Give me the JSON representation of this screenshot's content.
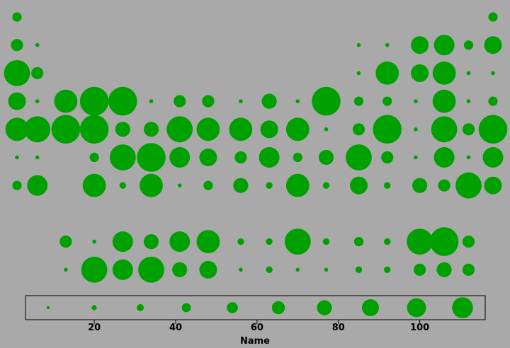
{
  "chart_data": {
    "type": "scatter",
    "encoding": "bubble-size",
    "xlabel": "Name",
    "xlim": [
      0,
      118
    ],
    "xticks": [
      20,
      40,
      60,
      80,
      100
    ],
    "ylabel": "",
    "grid": false,
    "bubble_color": "#00a000",
    "background": "#a9a9a9",
    "legend": {
      "placement": "bottom",
      "values": [
        1,
        2,
        3,
        4,
        5,
        6,
        7,
        8,
        9,
        10
      ]
    },
    "rows": [
      {
        "row": 1,
        "points": [
          [
            1,
            3
          ],
          [
            118,
            3
          ]
        ]
      },
      {
        "row": 2,
        "points": [
          [
            1,
            4
          ],
          [
            6,
            1
          ],
          [
            85,
            1
          ],
          [
            92,
            1
          ],
          [
            100,
            6
          ],
          [
            106,
            7
          ],
          [
            112,
            3
          ],
          [
            118,
            6
          ]
        ]
      },
      {
        "row": 3,
        "points": [
          [
            1,
            9
          ],
          [
            6,
            4
          ],
          [
            85,
            1
          ],
          [
            92,
            8
          ],
          [
            100,
            6
          ],
          [
            106,
            8
          ],
          [
            112,
            1
          ],
          [
            118,
            1
          ]
        ]
      },
      {
        "row": 4,
        "points": [
          [
            1,
            6
          ],
          [
            6,
            1
          ],
          [
            13,
            8
          ],
          [
            20,
            10
          ],
          [
            27,
            10
          ],
          [
            34,
            1
          ],
          [
            41,
            4
          ],
          [
            48,
            4
          ],
          [
            56,
            1
          ],
          [
            63,
            5
          ],
          [
            70,
            1
          ],
          [
            77,
            10
          ],
          [
            85,
            3
          ],
          [
            92,
            3
          ],
          [
            99,
            1
          ],
          [
            106,
            8
          ],
          [
            112,
            1
          ],
          [
            118,
            3
          ]
        ]
      },
      {
        "row": 5,
        "points": [
          [
            1,
            8
          ],
          [
            6,
            9
          ],
          [
            13,
            10
          ],
          [
            20,
            10
          ],
          [
            27,
            5
          ],
          [
            34,
            5
          ],
          [
            41,
            9
          ],
          [
            48,
            8
          ],
          [
            56,
            8
          ],
          [
            63,
            6
          ],
          [
            70,
            8
          ],
          [
            77,
            1
          ],
          [
            85,
            4
          ],
          [
            92,
            10
          ],
          [
            99,
            1
          ],
          [
            106,
            9
          ],
          [
            112,
            4
          ],
          [
            118,
            10
          ]
        ]
      },
      {
        "row": 6,
        "points": [
          [
            1,
            1
          ],
          [
            6,
            1
          ],
          [
            20,
            3
          ],
          [
            27,
            9
          ],
          [
            34,
            10
          ],
          [
            41,
            7
          ],
          [
            48,
            6
          ],
          [
            56,
            4
          ],
          [
            63,
            7
          ],
          [
            70,
            3
          ],
          [
            77,
            5
          ],
          [
            85,
            9
          ],
          [
            92,
            4
          ],
          [
            99,
            1
          ],
          [
            106,
            7
          ],
          [
            112,
            1
          ],
          [
            118,
            7
          ]
        ]
      },
      {
        "row": 7,
        "points": [
          [
            1,
            3
          ],
          [
            6,
            7
          ],
          [
            20,
            8
          ],
          [
            27,
            2
          ],
          [
            34,
            8
          ],
          [
            41,
            1
          ],
          [
            48,
            3
          ],
          [
            56,
            5
          ],
          [
            63,
            2
          ],
          [
            70,
            8
          ],
          [
            77,
            2
          ],
          [
            85,
            6
          ],
          [
            92,
            2
          ],
          [
            100,
            5
          ],
          [
            106,
            4
          ],
          [
            112,
            9
          ],
          [
            118,
            6
          ]
        ]
      },
      {
        "row": 9,
        "points": [
          [
            13,
            4
          ],
          [
            20,
            1
          ],
          [
            27,
            7
          ],
          [
            34,
            5
          ],
          [
            41,
            7
          ],
          [
            48,
            8
          ],
          [
            56,
            2
          ],
          [
            63,
            2
          ],
          [
            70,
            9
          ],
          [
            77,
            2
          ],
          [
            85,
            3
          ],
          [
            92,
            2
          ],
          [
            100,
            9
          ],
          [
            106,
            10
          ],
          [
            112,
            4
          ]
        ]
      },
      {
        "row": 10,
        "points": [
          [
            13,
            1
          ],
          [
            20,
            9
          ],
          [
            27,
            7
          ],
          [
            34,
            9
          ],
          [
            41,
            5
          ],
          [
            48,
            6
          ],
          [
            56,
            1
          ],
          [
            63,
            2
          ],
          [
            70,
            1
          ],
          [
            77,
            1
          ],
          [
            85,
            2
          ],
          [
            92,
            2
          ],
          [
            100,
            4
          ],
          [
            106,
            5
          ],
          [
            112,
            4
          ]
        ]
      }
    ]
  }
}
